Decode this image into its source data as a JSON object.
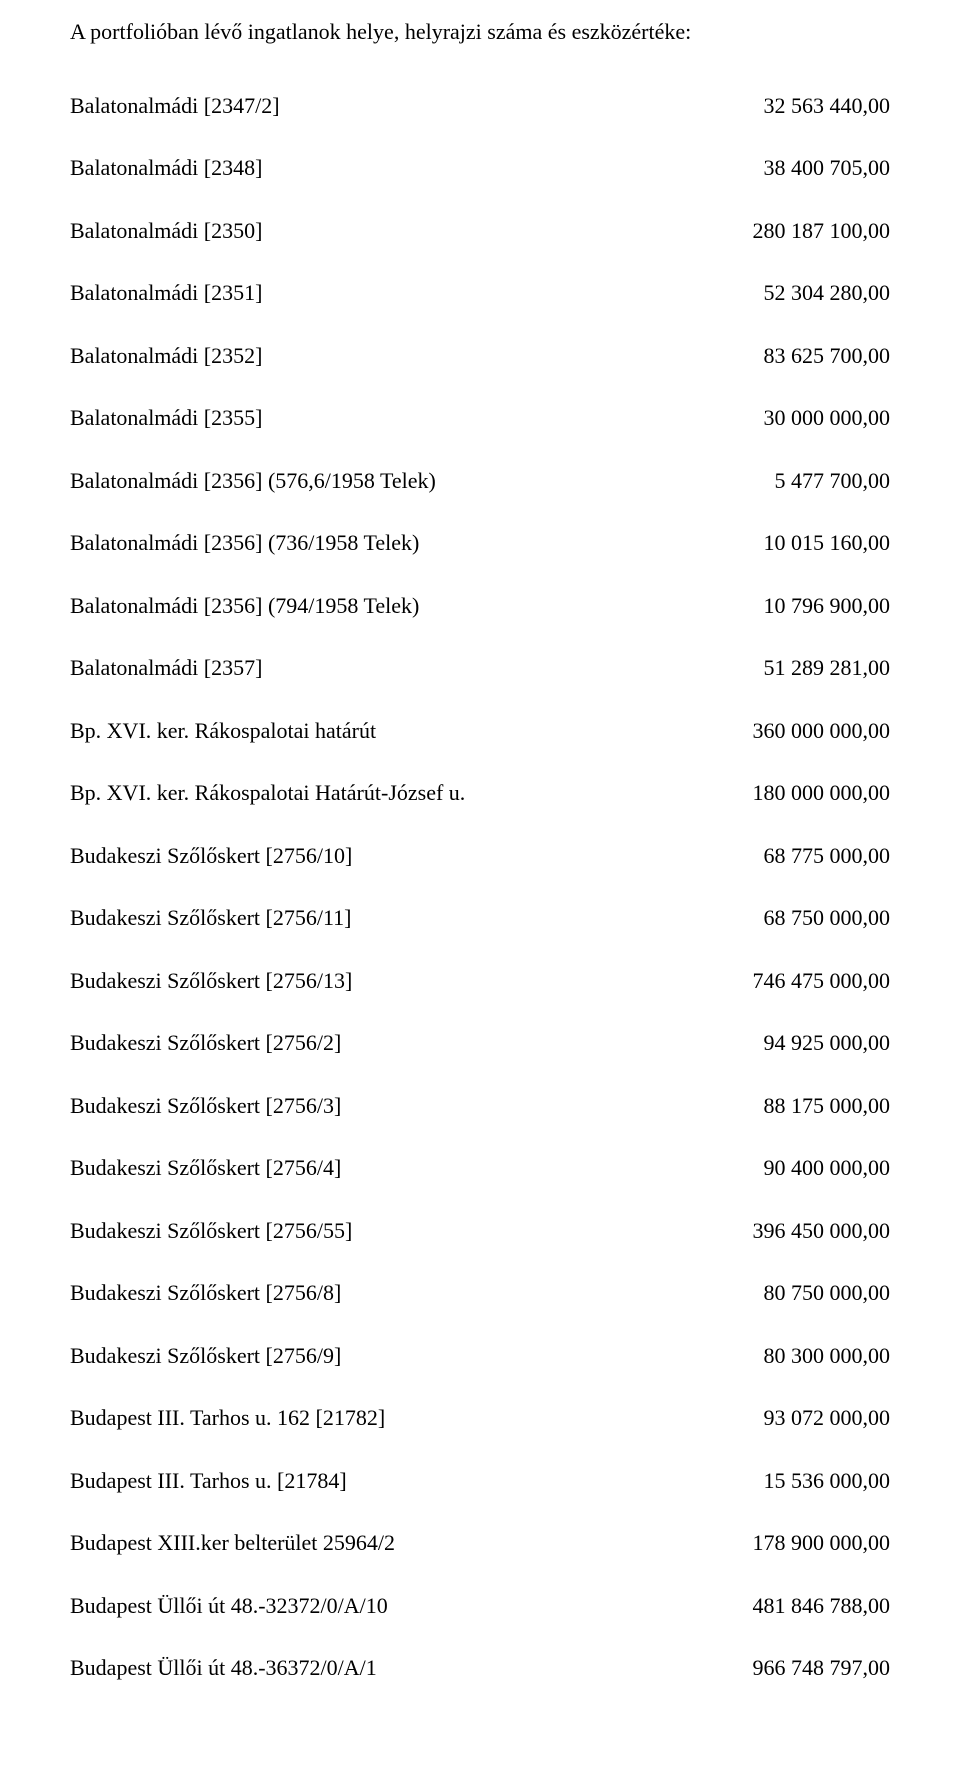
{
  "title": "A portfolióban lévő ingatlanok helye, helyrajzi száma és eszközértéke:",
  "rows": [
    {
      "label": "Balatonalmádi [2347/2]",
      "value": "32 563 440,00"
    },
    {
      "label": "Balatonalmádi [2348]",
      "value": "38 400 705,00"
    },
    {
      "label": "Balatonalmádi [2350]",
      "value": "280 187 100,00"
    },
    {
      "label": "Balatonalmádi [2351]",
      "value": "52 304 280,00"
    },
    {
      "label": "Balatonalmádi [2352]",
      "value": "83 625 700,00"
    },
    {
      "label": "Balatonalmádi [2355]",
      "value": "30 000 000,00"
    },
    {
      "label": "Balatonalmádi [2356] (576,6/1958 Telek)",
      "value": "5 477 700,00"
    },
    {
      "label": "Balatonalmádi [2356] (736/1958 Telek)",
      "value": "10 015 160,00"
    },
    {
      "label": "Balatonalmádi [2356] (794/1958 Telek)",
      "value": "10 796 900,00"
    },
    {
      "label": "Balatonalmádi [2357]",
      "value": "51 289 281,00"
    },
    {
      "label": "Bp. XVI. ker. Rákospalotai határút",
      "value": "360 000 000,00"
    },
    {
      "label": "Bp. XVI. ker. Rákospalotai Határút-József u.",
      "value": "180 000 000,00"
    },
    {
      "label": "Budakeszi Szőlőskert [2756/10]",
      "value": "68 775 000,00"
    },
    {
      "label": "Budakeszi Szőlőskert [2756/11]",
      "value": "68 750 000,00"
    },
    {
      "label": "Budakeszi Szőlőskert [2756/13]",
      "value": "746 475 000,00"
    },
    {
      "label": "Budakeszi Szőlőskert [2756/2]",
      "value": "94 925 000,00"
    },
    {
      "label": "Budakeszi Szőlőskert [2756/3]",
      "value": "88 175 000,00"
    },
    {
      "label": "Budakeszi Szőlőskert [2756/4]",
      "value": "90 400 000,00"
    },
    {
      "label": "Budakeszi Szőlőskert [2756/55]",
      "value": "396 450 000,00"
    },
    {
      "label": "Budakeszi Szőlőskert [2756/8]",
      "value": "80 750 000,00"
    },
    {
      "label": "Budakeszi Szőlőskert [2756/9]",
      "value": "80 300 000,00"
    },
    {
      "label": "Budapest III. Tarhos u. 162 [21782]",
      "value": "93 072 000,00"
    },
    {
      "label": "Budapest III. Tarhos u. [21784]",
      "value": "15 536 000,00"
    },
    {
      "label": "Budapest XIII.ker belterület 25964/2",
      "value": "178 900 000,00"
    },
    {
      "label": "Budapest Üllői út 48.-32372/0/A/10",
      "value": "481 846 788,00"
    },
    {
      "label": "Budapest Üllői út 48.-36372/0/A/1",
      "value": "966 748 797,00"
    }
  ]
}
